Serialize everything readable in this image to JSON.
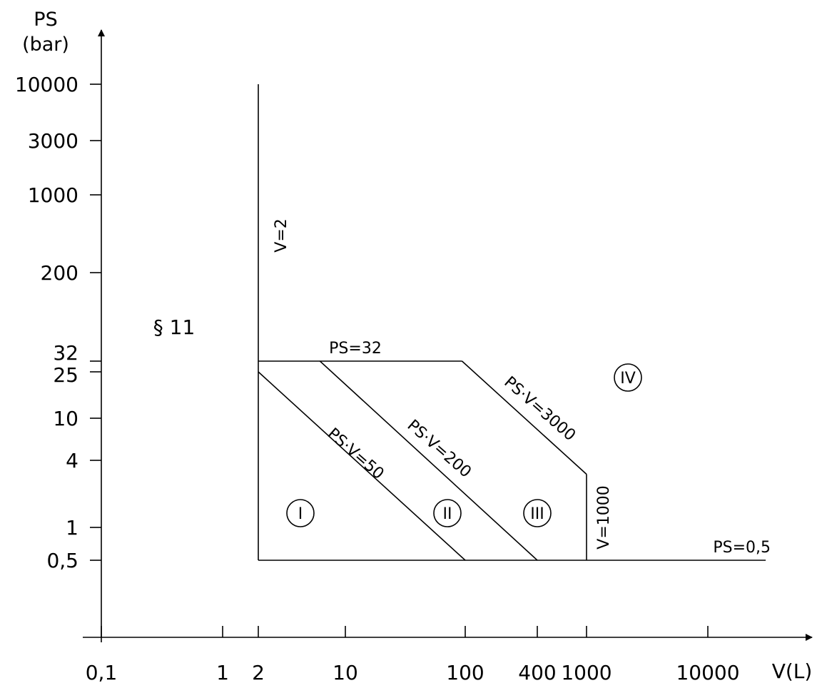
{
  "chart_data": {
    "type": "diagram",
    "x_axis": {
      "label": "V(L)",
      "scale": "log",
      "ticks": [
        {
          "value": 0.1,
          "label": "0,1"
        },
        {
          "value": 1,
          "label": "1"
        },
        {
          "value": 2,
          "label": "2"
        },
        {
          "value": 10,
          "label": "10"
        },
        {
          "value": 100,
          "label": "100"
        },
        {
          "value": 400,
          "label": "400"
        },
        {
          "value": 1000,
          "label": "1000"
        },
        {
          "value": 10000,
          "label": "10000"
        }
      ]
    },
    "y_axis": {
      "label_line1": "PS",
      "label_line2": "(bar)",
      "ticks": [
        {
          "value": 0.5,
          "label": "0,5"
        },
        {
          "value": 1,
          "label": "1"
        },
        {
          "value": 4,
          "label": "4"
        },
        {
          "value": 10,
          "label": "10"
        },
        {
          "value": 25,
          "label": "25"
        },
        {
          "value": 32,
          "label": "32"
        },
        {
          "value": 200,
          "label": "200"
        },
        {
          "value": 1000,
          "label": "1000"
        },
        {
          "value": 3000,
          "label": "3000"
        },
        {
          "value": 10000,
          "label": "10000"
        }
      ]
    },
    "boundary_lines": [
      {
        "name": "V=2",
        "label": "V=2",
        "points": [
          [
            2,
            0.5
          ],
          [
            2,
            10000
          ]
        ]
      },
      {
        "name": "PS=0,5",
        "label": "PS=0,5",
        "points": [
          [
            2,
            0.5
          ],
          [
            30000,
            0.5
          ]
        ]
      },
      {
        "name": "PS=32",
        "label": "PS=32",
        "points": [
          [
            2,
            32
          ],
          [
            94,
            32
          ]
        ]
      },
      {
        "name": "PS·V=50",
        "label": "PS·V=50",
        "points": [
          [
            2,
            25
          ],
          [
            100,
            0.5
          ]
        ]
      },
      {
        "name": "PS·V=200",
        "label": "PS·V=200",
        "points": [
          [
            6.25,
            32
          ],
          [
            400,
            0.5
          ]
        ]
      },
      {
        "name": "PS·V=3000",
        "label": "PS·V=3000",
        "points": [
          [
            94,
            32
          ],
          [
            1000,
            3
          ]
        ]
      },
      {
        "name": "V=1000",
        "label": "V=1000",
        "points": [
          [
            1000,
            3
          ],
          [
            1000,
            0.5
          ]
        ]
      }
    ],
    "regions": [
      "I",
      "II",
      "III",
      "IV"
    ],
    "annotation": "§ 11"
  }
}
